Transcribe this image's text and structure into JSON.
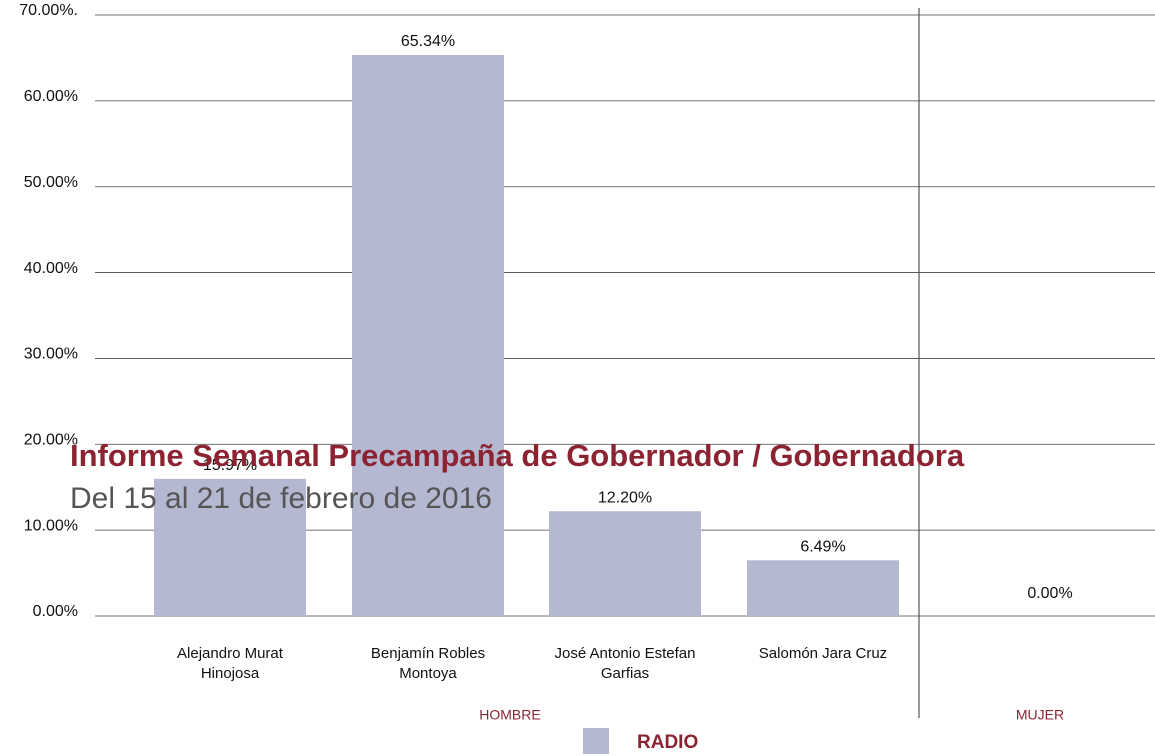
{
  "chart_data": {
    "type": "bar",
    "title": "Informe Semanal Precampaña de Gobernador / Gobernadora",
    "subtitle": "Del 15 al 21 de febrero de 2016",
    "categories": [
      "Alejandro Murat Hinojosa",
      "Benjamín Robles Montoya",
      "José Antonio Estefan Garfias",
      "Salomón Jara Cruz",
      null
    ],
    "groups": [
      "HOMBRE",
      "MUJER"
    ],
    "series": [
      {
        "name": "RADIO",
        "color": "#b5b8d1",
        "values": [
          15.97,
          65.34,
          12.2,
          6.49,
          0.0
        ],
        "value_labels": [
          "15.97%",
          "65.34%",
          "12.20%",
          "6.49%",
          "0.00%"
        ]
      }
    ],
    "ylim": [
      0,
      70
    ],
    "yticks": [
      {
        "value": 0,
        "label": "0.00%"
      },
      {
        "value": 10,
        "label": "10.00%"
      },
      {
        "value": 20,
        "label": "20.00%"
      },
      {
        "value": 30,
        "label": "30.00%"
      },
      {
        "value": 40,
        "label": "40.00%"
      },
      {
        "value": 50,
        "label": "50.00%"
      },
      {
        "value": 60,
        "label": "60.00%"
      },
      {
        "value": 70,
        "label": "70.00%."
      }
    ],
    "grid": true
  }
}
